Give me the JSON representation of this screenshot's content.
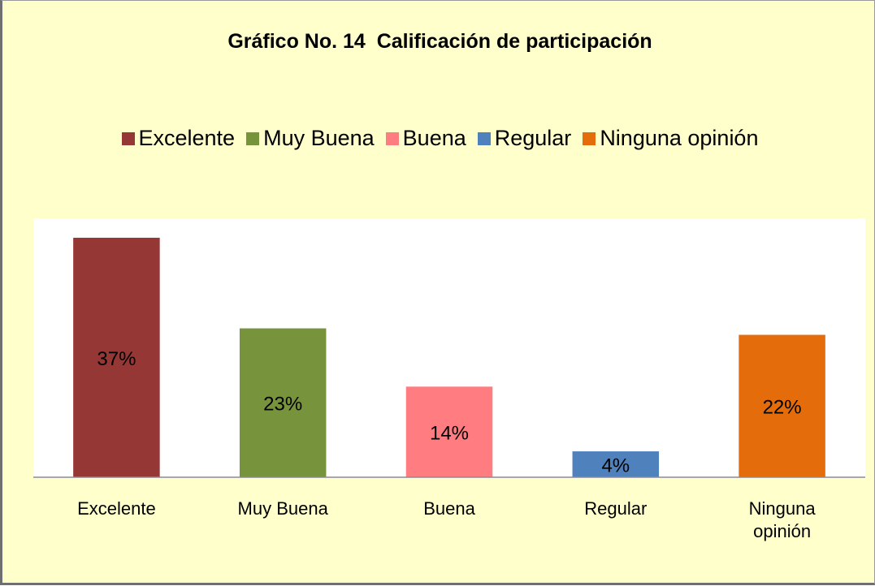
{
  "chart_data": {
    "type": "bar",
    "title": "Gráfico No. 14  Calificación de participación",
    "categories": [
      "Excelente",
      "Muy Buena",
      "Buena",
      "Regular",
      "Ninguna opinión"
    ],
    "values": [
      37,
      23,
      14,
      4,
      22
    ],
    "value_labels": [
      "37%",
      "23%",
      "14%",
      "4%",
      "22%"
    ],
    "colors": [
      "#953735",
      "#77933c",
      "#ff7c80",
      "#4f81bd",
      "#e46c0a"
    ],
    "ylim": [
      0,
      40
    ],
    "legend": "top"
  }
}
